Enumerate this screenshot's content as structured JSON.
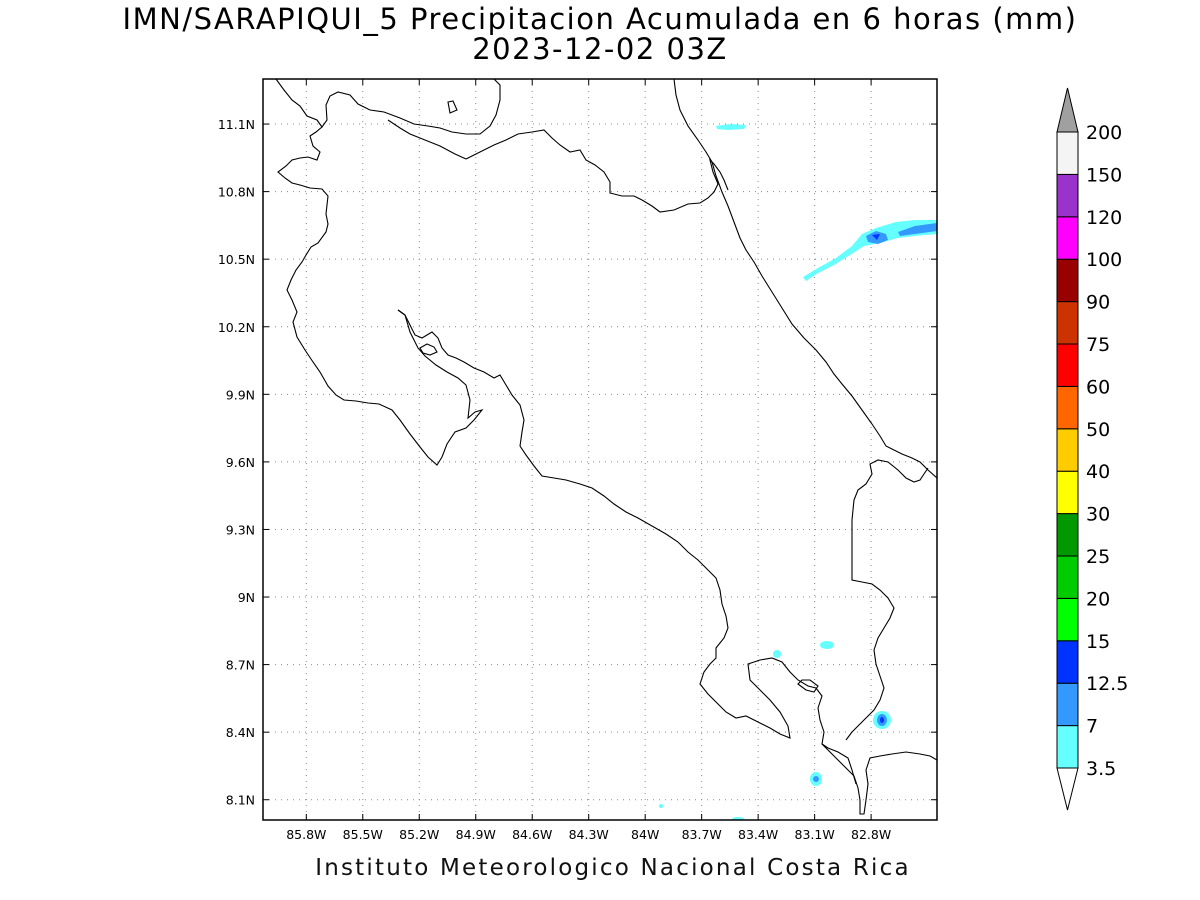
{
  "title": {
    "line1": "IMN/SARAPIQUI_5 Precipitacion Acumulada en 6 horas (mm)",
    "line2": "2023-12-02 03Z"
  },
  "footer": "Instituto Meteorologico Nacional Costa Rica",
  "map": {
    "lon_range": [
      -86.03,
      -82.45
    ],
    "lat_range": [
      8.01,
      11.3
    ],
    "lon_ticks": [
      {
        "value": -85.8,
        "label": "85.8W"
      },
      {
        "value": -85.5,
        "label": "85.5W"
      },
      {
        "value": -85.2,
        "label": "85.2W"
      },
      {
        "value": -84.9,
        "label": "84.9W"
      },
      {
        "value": -84.6,
        "label": "84.6W"
      },
      {
        "value": -84.3,
        "label": "84.3W"
      },
      {
        "value": -84.0,
        "label": "84W"
      },
      {
        "value": -83.7,
        "label": "83.7W"
      },
      {
        "value": -83.4,
        "label": "83.4W"
      },
      {
        "value": -83.1,
        "label": "83.1W"
      },
      {
        "value": -82.8,
        "label": "82.8W"
      }
    ],
    "lat_ticks": [
      {
        "value": 8.1,
        "label": "8.1N"
      },
      {
        "value": 8.4,
        "label": "8.4N"
      },
      {
        "value": 8.7,
        "label": "8.7N"
      },
      {
        "value": 9.0,
        "label": "9N"
      },
      {
        "value": 9.3,
        "label": "9.3N"
      },
      {
        "value": 9.6,
        "label": "9.6N"
      },
      {
        "value": 9.9,
        "label": "9.9N"
      },
      {
        "value": 10.2,
        "label": "10.2N"
      },
      {
        "value": 10.5,
        "label": "10.5N"
      },
      {
        "value": 10.8,
        "label": "10.8N"
      },
      {
        "value": 11.1,
        "label": "11.1N"
      }
    ],
    "grid": "dotted",
    "precip_areas": [
      {
        "name": "caribbean-band",
        "lon": -82.8,
        "lat": 10.58,
        "max_class": "7-12.5"
      },
      {
        "name": "north-coast-strip",
        "lon": -83.55,
        "lat": 11.09,
        "max_class": "3.5-7"
      },
      {
        "name": "osa-east-spot",
        "lon": -82.8,
        "lat": 8.45,
        "max_class": "7-12.5"
      },
      {
        "name": "golfito-spot",
        "lon": -83.1,
        "lat": 8.17,
        "max_class": "3.5-7"
      },
      {
        "name": "coto-spot",
        "lon": -83.09,
        "lat": 8.78,
        "max_class": "3.5-7"
      },
      {
        "name": "osa-north-spot",
        "lon": -83.39,
        "lat": 8.74,
        "max_class": "3.5-7"
      }
    ]
  },
  "colorbar": {
    "under_color": "#ffffff",
    "over_color": "#a0a0a0",
    "bins": [
      {
        "color": "#66ffff"
      },
      {
        "color": "#3399ff"
      },
      {
        "color": "#0033ff"
      },
      {
        "color": "#00ff00"
      },
      {
        "color": "#00cc00"
      },
      {
        "color": "#009900"
      },
      {
        "color": "#ffff00"
      },
      {
        "color": "#ffcc00"
      },
      {
        "color": "#ff6600"
      },
      {
        "color": "#ff0000"
      },
      {
        "color": "#cc3300"
      },
      {
        "color": "#990000"
      },
      {
        "color": "#ff00ff"
      },
      {
        "color": "#9933cc"
      },
      {
        "color": "#f4f4f4"
      }
    ],
    "labels": [
      "3.5",
      "7",
      "12.5",
      "15",
      "20",
      "25",
      "30",
      "40",
      "50",
      "60",
      "75",
      "90",
      "100",
      "120",
      "150",
      "200"
    ]
  }
}
